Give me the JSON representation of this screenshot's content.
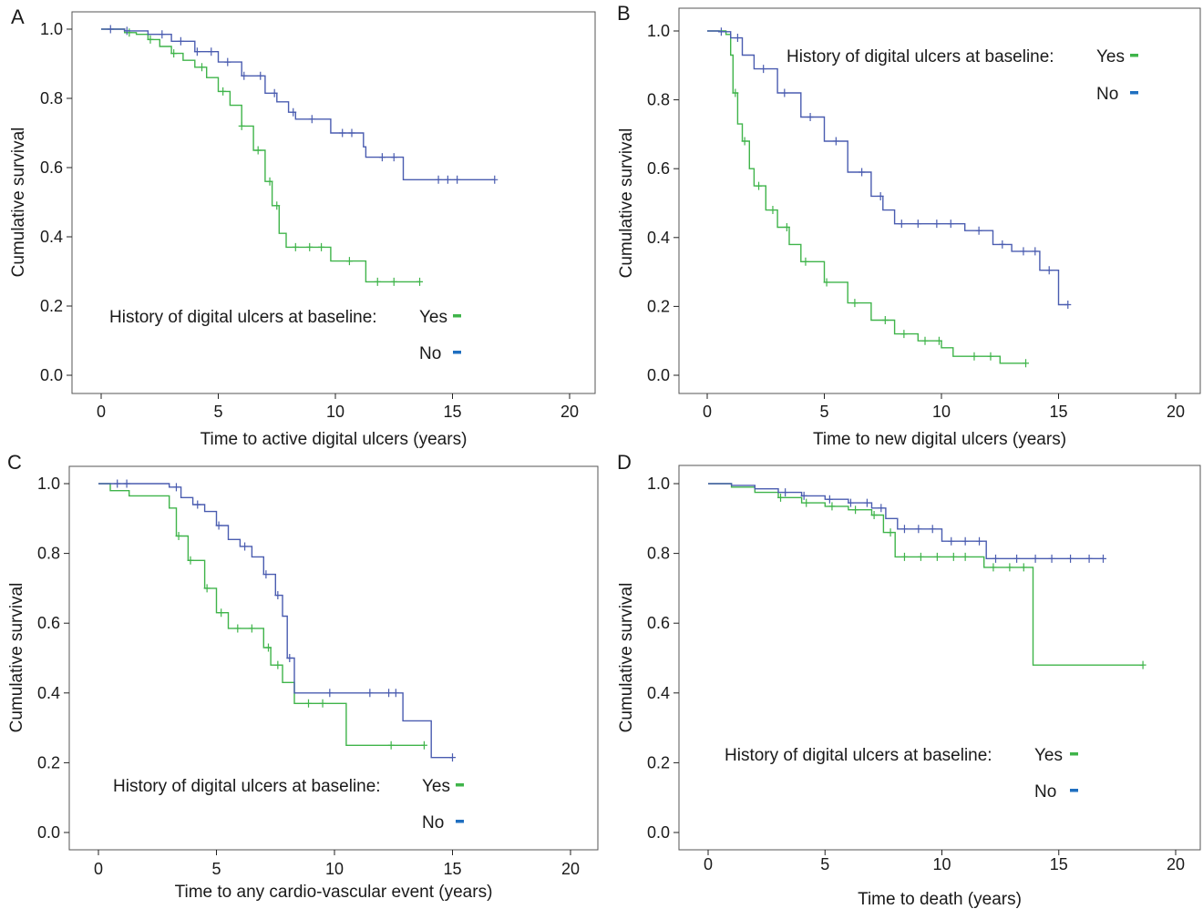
{
  "legend_title": "History of digital ulcers at baseline:",
  "legend_yes": "Yes",
  "legend_no": "No",
  "colors": {
    "yes": "#3fb44a",
    "no": "#4a5cb0",
    "legend_no_marker": "#1f6fc0",
    "axis": "#222222",
    "frame": "#555555"
  },
  "chart_data": [
    {
      "panel": "A",
      "type": "line",
      "xlabel": "Time to active digital ulcers (years)",
      "ylabel": "Cumulative survival",
      "xlim": [
        0,
        20
      ],
      "ylim": [
        0,
        1
      ],
      "xticks": [
        0,
        5,
        10,
        15,
        20
      ],
      "yticks": [
        0.0,
        0.2,
        0.4,
        0.6,
        0.8,
        1.0
      ],
      "legend": "bottom-left",
      "series": [
        {
          "name": "Yes",
          "color": "#3fb44a",
          "steps": [
            [
              0.0,
              1.0
            ],
            [
              0.5,
              1.0
            ],
            [
              1.0,
              0.99
            ],
            [
              1.5,
              0.985
            ],
            [
              2.0,
              0.97
            ],
            [
              2.5,
              0.95
            ],
            [
              3.0,
              0.93
            ],
            [
              3.5,
              0.91
            ],
            [
              4.0,
              0.89
            ],
            [
              4.5,
              0.86
            ],
            [
              5.0,
              0.82
            ],
            [
              5.5,
              0.78
            ],
            [
              6.0,
              0.72
            ],
            [
              6.5,
              0.65
            ],
            [
              7.0,
              0.56
            ],
            [
              7.3,
              0.49
            ],
            [
              7.6,
              0.41
            ],
            [
              7.9,
              0.37
            ],
            [
              9.8,
              0.37
            ],
            [
              9.8,
              0.33
            ],
            [
              11.3,
              0.33
            ],
            [
              11.3,
              0.27
            ],
            [
              13.6,
              0.27
            ]
          ],
          "censor_t": [
            1.2,
            2.1,
            3.1,
            4.3,
            5.2,
            6.0,
            6.7,
            7.2,
            7.5,
            8.3,
            8.9,
            9.4,
            10.6,
            11.8,
            12.5,
            13.6
          ]
        },
        {
          "name": "No",
          "color": "#4a5cb0",
          "steps": [
            [
              0.0,
              1.0
            ],
            [
              1.0,
              0.995
            ],
            [
              2.0,
              0.985
            ],
            [
              3.0,
              0.965
            ],
            [
              4.0,
              0.935
            ],
            [
              5.0,
              0.905
            ],
            [
              6.0,
              0.865
            ],
            [
              7.0,
              0.815
            ],
            [
              7.5,
              0.79
            ],
            [
              8.0,
              0.76
            ],
            [
              8.3,
              0.74
            ],
            [
              9.8,
              0.74
            ],
            [
              9.8,
              0.7
            ],
            [
              11.0,
              0.7
            ],
            [
              11.2,
              0.66
            ],
            [
              11.3,
              0.63
            ],
            [
              12.9,
              0.63
            ],
            [
              12.9,
              0.565
            ],
            [
              16.8,
              0.565
            ]
          ],
          "censor_t": [
            0.4,
            1.1,
            2.6,
            3.4,
            4.1,
            4.7,
            5.4,
            6.1,
            6.8,
            7.4,
            8.2,
            9.0,
            10.3,
            10.7,
            12.0,
            12.5,
            14.4,
            14.8,
            15.2,
            16.8
          ]
        }
      ]
    },
    {
      "panel": "B",
      "type": "line",
      "xlabel": "Time to new digital ulcers (years)",
      "ylabel": "Cumulative survival",
      "xlim": [
        0,
        20
      ],
      "ylim": [
        0,
        1
      ],
      "xticks": [
        0,
        5,
        10,
        15,
        20
      ],
      "yticks": [
        0.0,
        0.2,
        0.4,
        0.6,
        0.8,
        1.0
      ],
      "legend": "top-right",
      "series": [
        {
          "name": "Yes",
          "color": "#3fb44a",
          "steps": [
            [
              0.0,
              1.0
            ],
            [
              0.5,
              1.0
            ],
            [
              0.8,
              0.99
            ],
            [
              1.0,
              0.93
            ],
            [
              1.1,
              0.82
            ],
            [
              1.3,
              0.73
            ],
            [
              1.5,
              0.68
            ],
            [
              1.8,
              0.6
            ],
            [
              2.0,
              0.55
            ],
            [
              2.5,
              0.48
            ],
            [
              3.0,
              0.43
            ],
            [
              3.5,
              0.38
            ],
            [
              4.0,
              0.33
            ],
            [
              5.0,
              0.27
            ],
            [
              6.0,
              0.21
            ],
            [
              7.0,
              0.16
            ],
            [
              8.0,
              0.12
            ],
            [
              9.0,
              0.1
            ],
            [
              10.0,
              0.08
            ],
            [
              10.5,
              0.055
            ],
            [
              12.5,
              0.055
            ],
            [
              12.5,
              0.035
            ],
            [
              13.6,
              0.035
            ]
          ],
          "censor_t": [
            1.2,
            1.6,
            2.2,
            2.8,
            3.4,
            4.2,
            5.1,
            6.3,
            7.6,
            8.4,
            9.3,
            9.9,
            11.4,
            12.1,
            13.6
          ]
        },
        {
          "name": "No",
          "color": "#4a5cb0",
          "steps": [
            [
              0.0,
              1.0
            ],
            [
              0.5,
              0.998
            ],
            [
              1.0,
              0.98
            ],
            [
              1.5,
              0.93
            ],
            [
              2.0,
              0.89
            ],
            [
              3.0,
              0.82
            ],
            [
              4.0,
              0.75
            ],
            [
              5.0,
              0.68
            ],
            [
              6.0,
              0.59
            ],
            [
              7.0,
              0.52
            ],
            [
              7.5,
              0.48
            ],
            [
              8.0,
              0.44
            ],
            [
              11.0,
              0.44
            ],
            [
              11.0,
              0.42
            ],
            [
              12.0,
              0.42
            ],
            [
              12.2,
              0.38
            ],
            [
              13.0,
              0.38
            ],
            [
              13.0,
              0.36
            ],
            [
              14.2,
              0.36
            ],
            [
              14.2,
              0.305
            ],
            [
              15.0,
              0.305
            ],
            [
              15.0,
              0.205
            ],
            [
              15.4,
              0.205
            ]
          ],
          "censor_t": [
            0.6,
            1.3,
            2.4,
            3.3,
            4.4,
            5.5,
            6.6,
            7.4,
            8.3,
            9.0,
            9.8,
            10.4,
            11.6,
            12.6,
            13.5,
            14.0,
            14.6,
            15.4
          ]
        }
      ]
    },
    {
      "panel": "C",
      "type": "line",
      "xlabel": "Time to any cardio-vascular event (years)",
      "ylabel": "Cumulative survival",
      "xlim": [
        0,
        20
      ],
      "ylim": [
        0,
        1
      ],
      "xticks": [
        0,
        5,
        10,
        15,
        20
      ],
      "yticks": [
        0.0,
        0.2,
        0.4,
        0.6,
        0.8,
        1.0
      ],
      "legend": "bottom-left",
      "series": [
        {
          "name": "Yes",
          "color": "#3fb44a",
          "steps": [
            [
              0.0,
              1.0
            ],
            [
              0.5,
              1.0
            ],
            [
              0.5,
              0.98
            ],
            [
              1.3,
              0.98
            ],
            [
              1.3,
              0.965
            ],
            [
              3.0,
              0.965
            ],
            [
              3.0,
              0.93
            ],
            [
              3.3,
              0.85
            ],
            [
              3.8,
              0.78
            ],
            [
              4.5,
              0.7
            ],
            [
              5.0,
              0.63
            ],
            [
              5.5,
              0.585
            ],
            [
              6.6,
              0.585
            ],
            [
              7.0,
              0.53
            ],
            [
              7.3,
              0.48
            ],
            [
              7.8,
              0.48
            ],
            [
              7.8,
              0.43
            ],
            [
              8.3,
              0.43
            ],
            [
              8.3,
              0.37
            ],
            [
              10.5,
              0.37
            ],
            [
              10.5,
              0.25
            ],
            [
              13.8,
              0.25
            ]
          ],
          "censor_t": [
            3.4,
            3.9,
            4.6,
            5.2,
            5.9,
            6.5,
            7.2,
            7.6,
            8.9,
            9.5,
            12.4,
            13.8
          ]
        },
        {
          "name": "No",
          "color": "#4a5cb0",
          "steps": [
            [
              0.0,
              1.0
            ],
            [
              1.5,
              1.0
            ],
            [
              3.0,
              0.99
            ],
            [
              3.5,
              0.96
            ],
            [
              4.0,
              0.94
            ],
            [
              4.5,
              0.92
            ],
            [
              5.0,
              0.88
            ],
            [
              5.5,
              0.84
            ],
            [
              6.0,
              0.82
            ],
            [
              6.5,
              0.79
            ],
            [
              7.0,
              0.74
            ],
            [
              7.5,
              0.68
            ],
            [
              7.8,
              0.62
            ],
            [
              8.0,
              0.5
            ],
            [
              8.3,
              0.4
            ],
            [
              12.9,
              0.4
            ],
            [
              12.9,
              0.32
            ],
            [
              14.1,
              0.32
            ],
            [
              14.1,
              0.215
            ],
            [
              15.0,
              0.215
            ]
          ],
          "censor_t": [
            0.8,
            1.2,
            3.3,
            4.2,
            5.1,
            6.2,
            7.1,
            7.6,
            8.1,
            9.8,
            11.5,
            12.3,
            12.6,
            15.0
          ]
        }
      ]
    },
    {
      "panel": "D",
      "type": "line",
      "xlabel": "Time to death (years)",
      "ylabel": "Cumulative survival",
      "xlim": [
        0,
        20
      ],
      "ylim": [
        0,
        1
      ],
      "xticks": [
        0,
        5,
        10,
        15,
        20
      ],
      "yticks": [
        0.0,
        0.2,
        0.4,
        0.6,
        0.8,
        1.0
      ],
      "legend": "bottom-left",
      "series": [
        {
          "name": "Yes",
          "color": "#3fb44a",
          "steps": [
            [
              0.0,
              1.0
            ],
            [
              1.0,
              0.99
            ],
            [
              2.0,
              0.975
            ],
            [
              3.0,
              0.96
            ],
            [
              4.0,
              0.945
            ],
            [
              5.0,
              0.935
            ],
            [
              6.0,
              0.925
            ],
            [
              7.0,
              0.91
            ],
            [
              7.5,
              0.86
            ],
            [
              8.0,
              0.79
            ],
            [
              11.8,
              0.79
            ],
            [
              11.8,
              0.76
            ],
            [
              13.9,
              0.76
            ],
            [
              13.9,
              0.48
            ],
            [
              18.6,
              0.48
            ]
          ],
          "censor_t": [
            3.1,
            4.2,
            5.3,
            6.3,
            7.1,
            7.8,
            8.4,
            9.1,
            9.8,
            10.5,
            11.0,
            12.2,
            12.9,
            13.5,
            18.6
          ]
        },
        {
          "name": "No",
          "color": "#4a5cb0",
          "steps": [
            [
              0.0,
              1.0
            ],
            [
              1.0,
              0.995
            ],
            [
              2.0,
              0.985
            ],
            [
              3.0,
              0.975
            ],
            [
              4.0,
              0.965
            ],
            [
              5.0,
              0.955
            ],
            [
              6.0,
              0.945
            ],
            [
              7.0,
              0.93
            ],
            [
              7.6,
              0.9
            ],
            [
              8.1,
              0.87
            ],
            [
              10.0,
              0.87
            ],
            [
              10.0,
              0.835
            ],
            [
              11.9,
              0.835
            ],
            [
              11.9,
              0.785
            ],
            [
              16.9,
              0.785
            ]
          ],
          "censor_t": [
            3.3,
            4.1,
            5.2,
            6.1,
            6.8,
            7.4,
            8.4,
            9.0,
            9.6,
            10.4,
            11.0,
            11.6,
            12.3,
            13.2,
            14.0,
            14.7,
            15.5,
            16.3,
            16.9
          ]
        }
      ]
    }
  ]
}
